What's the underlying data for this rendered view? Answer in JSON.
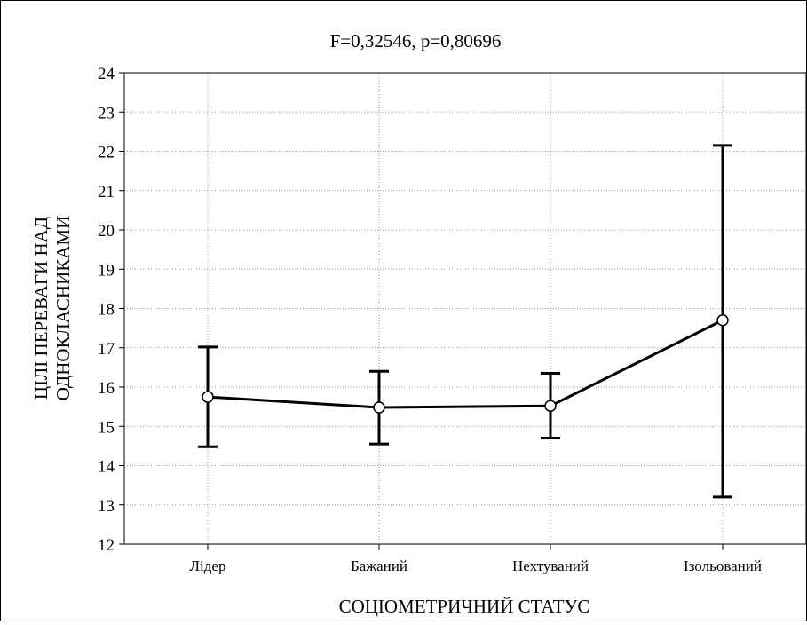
{
  "chart_data": {
    "type": "line",
    "title": "F=0,32546, p=0,80696",
    "xlabel": "СОЦІОМЕТРИЧНИЙ СТАТУС",
    "ylabel_lines": [
      "ЦІЛІ ПЕРЕВАГИ НАД",
      "ОДНОКЛАСНИКАМИ"
    ],
    "categories": [
      "Лідер",
      "Бажаний",
      "Нехтуваний",
      "Ізольований"
    ],
    "values": [
      15.75,
      15.48,
      15.52,
      17.7
    ],
    "ci_low": [
      14.48,
      14.55,
      14.7,
      13.2
    ],
    "ci_high": [
      17.02,
      16.4,
      16.35,
      22.15
    ],
    "ylim": [
      12,
      24
    ],
    "yticks": [
      "12",
      "13",
      "14",
      "15",
      "16",
      "17",
      "18",
      "19",
      "20",
      "21",
      "22",
      "23",
      "24"
    ],
    "grid": true,
    "legend": "none"
  }
}
